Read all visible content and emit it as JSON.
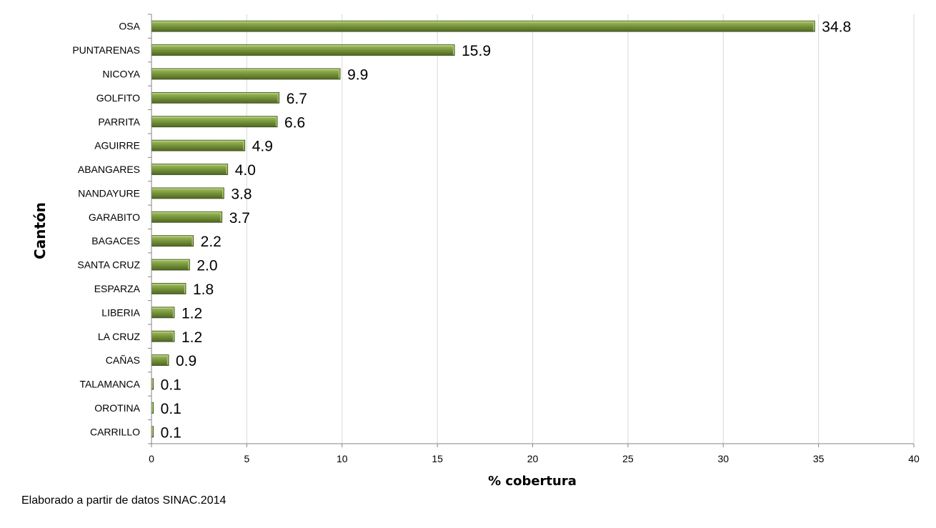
{
  "chart_data": {
    "type": "bar",
    "orientation": "horizontal",
    "categories": [
      "OSA",
      "PUNTARENAS",
      "NICOYA",
      "GOLFITO",
      "PARRITA",
      "AGUIRRE",
      "ABANGARES",
      "NANDAYURE",
      "GARABITO",
      "BAGACES",
      "SANTA CRUZ",
      "ESPARZA",
      "LIBERIA",
      "LA CRUZ",
      "CAÑAS",
      "TALAMANCA",
      "OROTINA",
      "CARRILLO"
    ],
    "values": [
      34.8,
      15.9,
      9.9,
      6.7,
      6.6,
      4.9,
      4.0,
      3.8,
      3.7,
      2.2,
      2.0,
      1.8,
      1.2,
      1.2,
      0.9,
      0.1,
      0.1,
      0.1
    ],
    "value_labels": [
      "34.8",
      "15.9",
      "9.9",
      "6.7",
      "6.6",
      "4.9",
      "4.0",
      "3.8",
      "3.7",
      "2.2",
      "2.0",
      "1.8",
      "1.2",
      "1.2",
      "0.9",
      "0.1",
      "0.1",
      "0.1"
    ],
    "xlabel": "% cobertura",
    "ylabel": "Cantón",
    "xlim": [
      0,
      40
    ],
    "xticks": [
      0,
      5,
      10,
      15,
      20,
      25,
      30,
      35,
      40
    ],
    "grid": true,
    "legend": "none",
    "bar_color": "#77933c"
  },
  "source_note": "Elaborado a partir de datos SINAC.2014"
}
